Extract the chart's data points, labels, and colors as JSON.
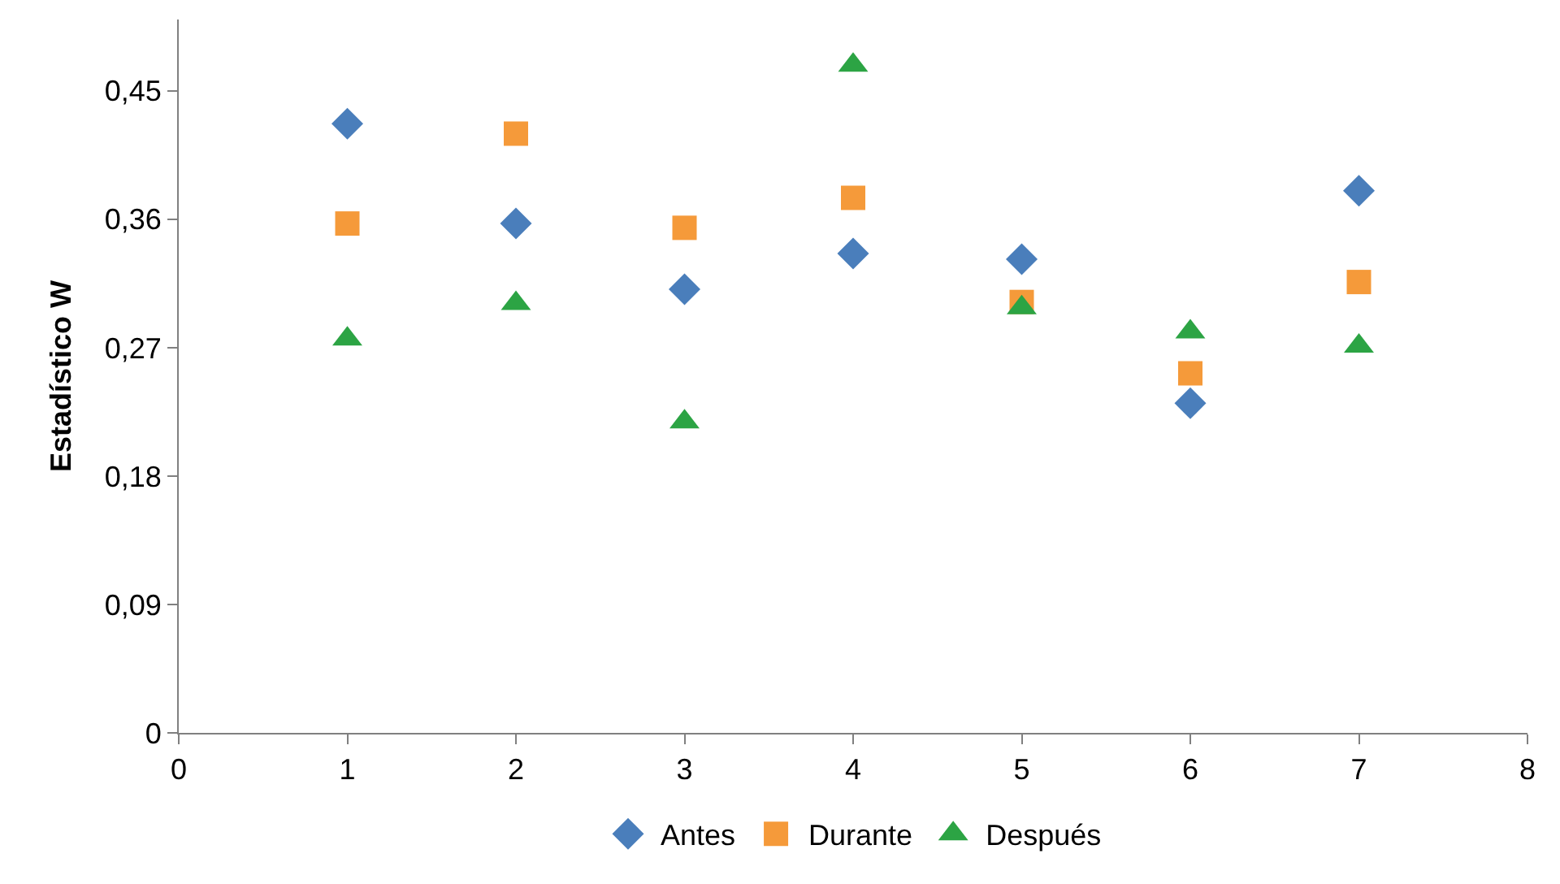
{
  "chart_data": {
    "type": "scatter",
    "ylabel": "Estadístico W",
    "x": [
      1,
      2,
      3,
      4,
      5,
      6,
      7
    ],
    "series": [
      {
        "name": "Antes",
        "color": "#4a7ebb",
        "marker": "diamond",
        "values": [
          0.427,
          0.357,
          0.311,
          0.336,
          0.332,
          0.231,
          0.38
        ]
      },
      {
        "name": "Durante",
        "color": "#f59a3a",
        "marker": "square",
        "values": [
          0.357,
          0.42,
          0.354,
          0.375,
          0.302,
          0.252,
          0.316
        ]
      },
      {
        "name": "Después",
        "color": "#2ca444",
        "marker": "triangle",
        "values": [
          0.276,
          0.301,
          0.218,
          0.468,
          0.298,
          0.281,
          0.271
        ]
      }
    ],
    "xlim": [
      0,
      8
    ],
    "xticks": [
      0,
      1,
      2,
      3,
      4,
      5,
      6,
      7,
      8
    ],
    "ylim": [
      0,
      0.5
    ],
    "yticks": [
      {
        "value": 0,
        "label": "0"
      },
      {
        "value": 0.09,
        "label": "0,09"
      },
      {
        "value": 0.18,
        "label": "0,18"
      },
      {
        "value": 0.27,
        "label": "0,27"
      },
      {
        "value": 0.36,
        "label": "0,36"
      },
      {
        "value": 0.45,
        "label": "0,45"
      }
    ],
    "legend": "bottom"
  }
}
